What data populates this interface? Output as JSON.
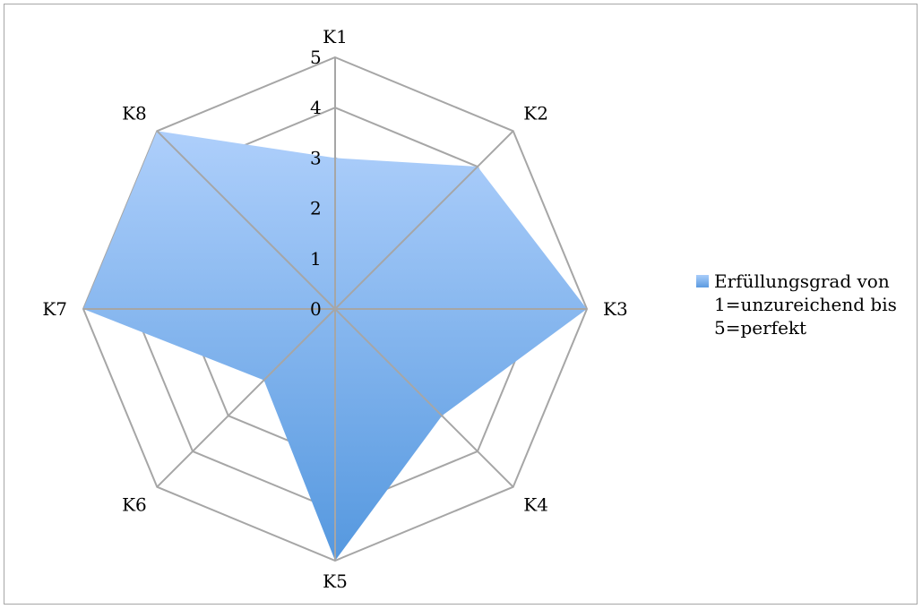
{
  "chart_data": {
    "type": "radar",
    "categories": [
      "K1",
      "K2",
      "K3",
      "K4",
      "K5",
      "K6",
      "K7",
      "K8"
    ],
    "series": [
      {
        "name": "Erfüllungsgrad von 1=unzureichend bis 5=perfekt",
        "values": [
          3,
          4,
          5,
          3,
          5,
          2,
          5,
          5
        ]
      }
    ],
    "r_ticks": [
      "0",
      "1",
      "2",
      "3",
      "4",
      "5"
    ],
    "rlim": [
      0,
      5
    ],
    "legend_position": "right",
    "colors": {
      "fill_top": "#aecffb",
      "fill_bottom": "#5598df",
      "grid": "#a6a6a6"
    }
  }
}
